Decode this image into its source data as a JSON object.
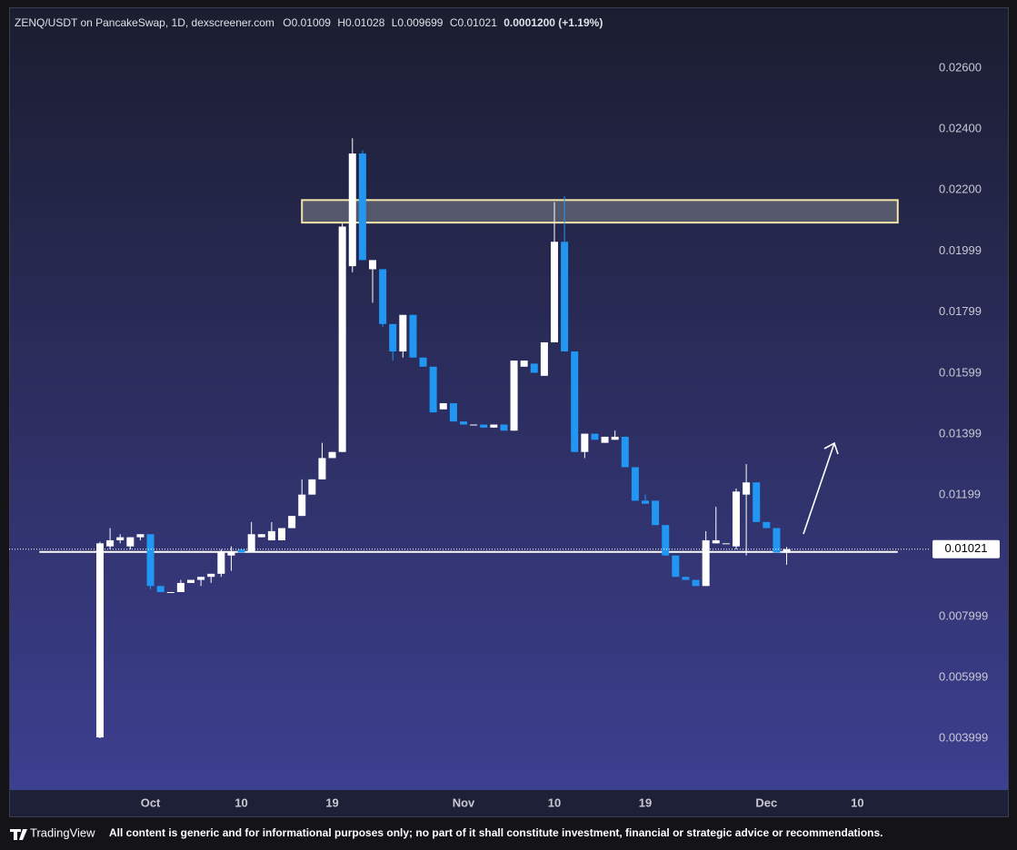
{
  "header": {
    "title": "ZENQ/USDT on PancakeSwap, 1D, dexscreener.com",
    "o": "O",
    "h": "H",
    "l": "L",
    "c": "C",
    "change": "0.0001200 (+1.19%)"
  },
  "footer": {
    "brand": "TradingView",
    "disclaimer": "All content is generic and for informational purposes only; no part of it shall constitute investment, financial or strategic advice or recommendations."
  },
  "chart_data": {
    "type": "candlestick",
    "x": [
      "09-26",
      "09-27",
      "09-28",
      "09-29",
      "09-30",
      "10-01",
      "10-02",
      "10-03",
      "10-04",
      "10-05",
      "10-06",
      "10-07",
      "10-08",
      "10-09",
      "10-10",
      "10-11",
      "10-12",
      "10-13",
      "10-14",
      "10-15",
      "10-16",
      "10-17",
      "10-18",
      "10-19",
      "10-20",
      "10-21",
      "10-22",
      "10-23",
      "10-24",
      "10-25",
      "10-26",
      "10-27",
      "10-28",
      "10-29",
      "10-30",
      "10-31",
      "11-01",
      "11-02",
      "11-03",
      "11-04",
      "11-05",
      "11-06",
      "11-07",
      "11-08",
      "11-09",
      "11-10",
      "11-11",
      "11-12",
      "11-13",
      "11-14",
      "11-15",
      "11-16",
      "11-17",
      "11-18",
      "11-19",
      "11-20",
      "11-21",
      "11-22",
      "11-23",
      "11-24",
      "11-25",
      "11-26",
      "11-27",
      "11-28",
      "11-29",
      "11-30",
      "12-01",
      "12-02",
      "12-03"
    ],
    "open": [
      0.00403,
      0.0103,
      0.0105,
      0.0103,
      0.0106,
      0.0107,
      0.009,
      0.0088,
      0.0088,
      0.0091,
      0.0092,
      0.0093,
      0.0094,
      0.01,
      0.0102,
      0.0101,
      0.0106,
      0.0105,
      0.0105,
      0.0109,
      0.0113,
      0.012,
      0.0125,
      0.0132,
      0.0134,
      0.0195,
      0.0232,
      0.0194,
      0.0194,
      0.0176,
      0.0167,
      0.0179,
      0.0165,
      0.0162,
      0.0148,
      0.015,
      0.0144,
      0.0143,
      0.0143,
      0.0142,
      0.0143,
      0.0141,
      0.0162,
      0.0163,
      0.0159,
      0.017,
      0.0203,
      0.0167,
      0.0134,
      0.014,
      0.0137,
      0.0138,
      0.0139,
      0.0129,
      0.0118,
      0.0118,
      0.011,
      0.01,
      0.0093,
      0.0092,
      0.009,
      0.0104,
      0.0104,
      0.0103,
      0.012,
      0.0124,
      0.0111,
      0.0109,
      0.01009
    ],
    "high": [
      0.01045,
      0.0109,
      0.0107,
      0.0106,
      0.0107,
      0.0107,
      0.009,
      0.0088,
      0.0092,
      0.0092,
      0.0093,
      0.0094,
      0.0102,
      0.0103,
      0.0102,
      0.0111,
      0.0107,
      0.0111,
      0.0109,
      0.0113,
      0.0125,
      0.0125,
      0.0137,
      0.0134,
      0.0209,
      0.0237,
      0.0233,
      0.0197,
      0.0194,
      0.0176,
      0.0179,
      0.0179,
      0.0165,
      0.0162,
      0.015,
      0.015,
      0.0144,
      0.0143,
      0.0143,
      0.0143,
      0.0143,
      0.0164,
      0.0164,
      0.0163,
      0.017,
      0.0216,
      0.0218,
      0.0167,
      0.014,
      0.014,
      0.0139,
      0.0141,
      0.0139,
      0.0129,
      0.012,
      0.0118,
      0.011,
      0.01,
      0.0093,
      0.0092,
      0.0108,
      0.0116,
      0.0104,
      0.0122,
      0.013,
      0.0124,
      0.0111,
      0.0109,
      0.01028
    ],
    "low": [
      0.004,
      0.0102,
      0.0104,
      0.0102,
      0.0105,
      0.0089,
      0.0088,
      0.0088,
      0.0088,
      0.0091,
      0.009,
      0.0091,
      0.0093,
      0.0095,
      0.0101,
      0.0101,
      0.0106,
      0.0105,
      0.0105,
      0.0109,
      0.0113,
      0.012,
      0.0125,
      0.0132,
      0.0134,
      0.0193,
      0.0197,
      0.0183,
      0.0175,
      0.0164,
      0.0165,
      0.0165,
      0.0162,
      0.0147,
      0.0148,
      0.0144,
      0.0143,
      0.0143,
      0.0142,
      0.0142,
      0.0141,
      0.0141,
      0.0162,
      0.016,
      0.0159,
      0.017,
      0.0167,
      0.0134,
      0.0132,
      0.0138,
      0.0137,
      0.0138,
      0.0129,
      0.0118,
      0.0117,
      0.011,
      0.01,
      0.0093,
      0.0092,
      0.009,
      0.009,
      0.0104,
      0.0104,
      0.0102,
      0.01,
      0.0111,
      0.0109,
      0.0101,
      0.009699
    ],
    "close": [
      0.0104,
      0.0105,
      0.0106,
      0.0106,
      0.0107,
      0.009,
      0.0088,
      0.0088,
      0.0091,
      0.0092,
      0.0093,
      0.0094,
      0.0101,
      0.0101,
      0.0101,
      0.0107,
      0.0107,
      0.0108,
      0.0109,
      0.0113,
      0.012,
      0.0125,
      0.0132,
      0.0134,
      0.0208,
      0.0232,
      0.0197,
      0.0197,
      0.0176,
      0.0167,
      0.0179,
      0.0165,
      0.0162,
      0.0147,
      0.015,
      0.0144,
      0.0143,
      0.0143,
      0.0142,
      0.0143,
      0.0141,
      0.0164,
      0.0164,
      0.016,
      0.017,
      0.0203,
      0.0167,
      0.0134,
      0.014,
      0.0138,
      0.0139,
      0.0139,
      0.0129,
      0.0118,
      0.0117,
      0.011,
      0.01,
      0.0093,
      0.0092,
      0.009,
      0.0105,
      0.0105,
      0.0104,
      0.0121,
      0.0124,
      0.0111,
      0.0109,
      0.0101,
      0.01021
    ],
    "up_color": "#ffffff",
    "down_color": "#2196f3",
    "xlim": [
      "09-17",
      "12-16"
    ],
    "xticks": [
      {
        "value": "10-01",
        "label": "Oct"
      },
      {
        "value": "10-10",
        "label": "10"
      },
      {
        "value": "10-19",
        "label": "19"
      },
      {
        "value": "11-01",
        "label": "Nov"
      },
      {
        "value": "11-10",
        "label": "10"
      },
      {
        "value": "11-19",
        "label": "19"
      },
      {
        "value": "12-01",
        "label": "Dec"
      },
      {
        "value": "12-10",
        "label": "10"
      }
    ],
    "ylim": [
      0.0023,
      0.028
    ],
    "yticks": [
      {
        "value": 0.026,
        "label": "0.02600"
      },
      {
        "value": 0.024,
        "label": "0.02400"
      },
      {
        "value": 0.022,
        "label": "0.02200"
      },
      0.01999,
      0.01799,
      0.01599,
      0.01399,
      0.01199,
      0.007999,
      0.005999,
      0.003999
    ],
    "last_price": 0.01021,
    "zone": {
      "x": [
        "10-16",
        "12-14"
      ],
      "y": [
        0.02093,
        0.02167
      ]
    },
    "hline": {
      "x": [
        "09-20",
        "12-14"
      ],
      "y": 0.01012
    }
  }
}
